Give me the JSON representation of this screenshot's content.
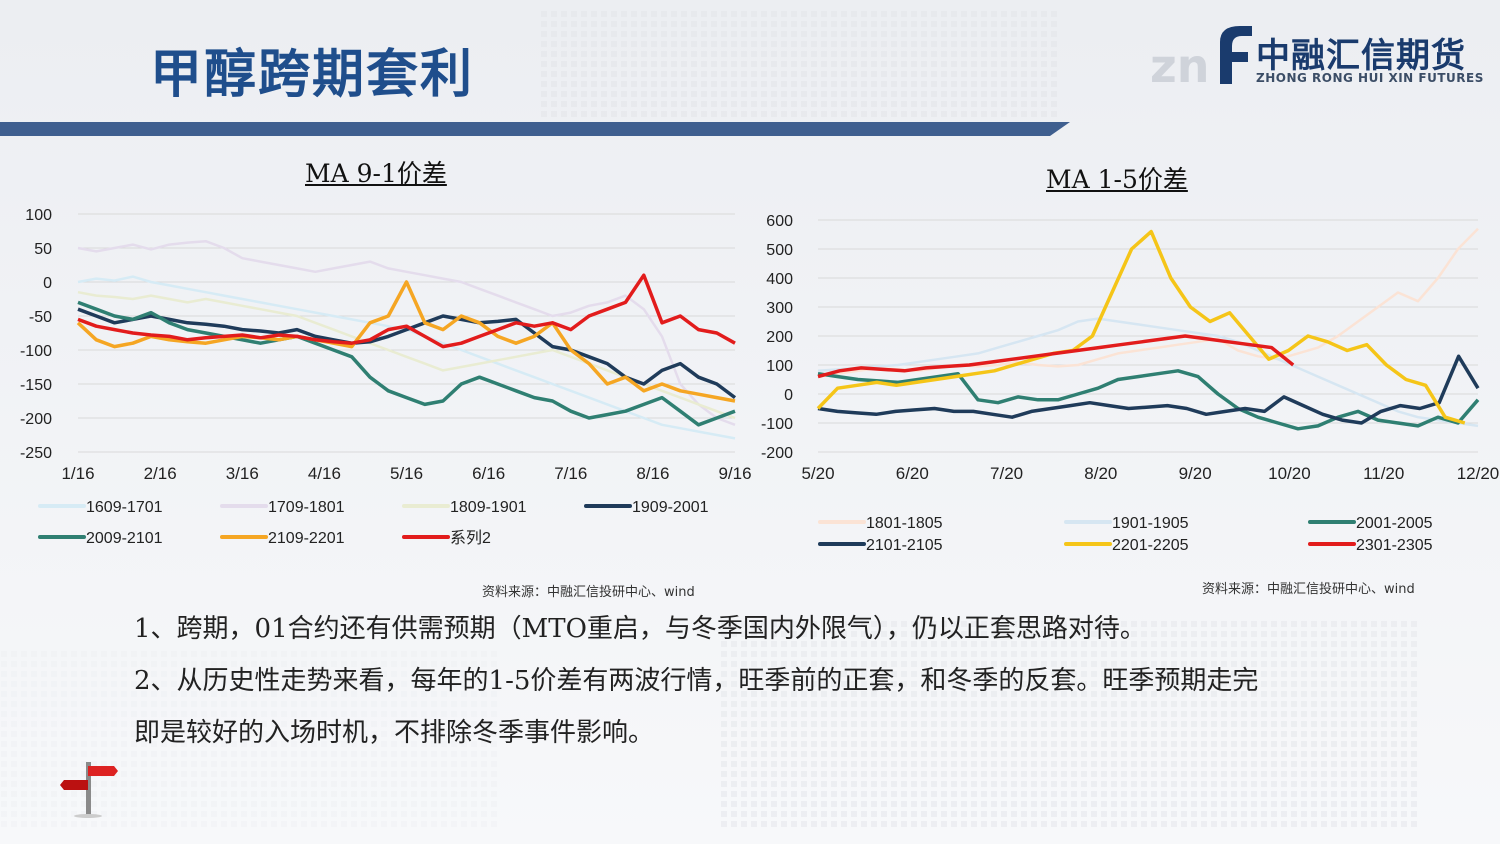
{
  "page": {
    "title": "甲醇跨期套利",
    "logo_cn": "中融汇信期货",
    "logo_en": "ZHONG RONG HUI XIN FUTURES",
    "bullets": [
      "1、跨期，01合约还有供需预期（MTO重启，与冬季国内外限气），仍以正套思路对待。",
      "2、从历史性走势来看，每年的1-5价差有两波行情，旺季前的正套，和冬季的反套。旺季预期走完",
      "即是较好的入场时机，不排除冬季事件影响。"
    ],
    "colors": {
      "title": "#1f4e8c",
      "band": "#3f5f8f",
      "logo": "#1a3b6d"
    }
  },
  "chart_data": [
    {
      "type": "line",
      "title": "MA 9-1价差",
      "source": "资料来源：中融汇信投研中心、wind",
      "ylim": [
        -250,
        100
      ],
      "yticks": [
        100,
        50,
        0,
        -50,
        -100,
        -150,
        -200,
        -250
      ],
      "xticks": [
        "1/16",
        "2/16",
        "3/16",
        "4/16",
        "5/16",
        "6/16",
        "7/16",
        "8/16",
        "9/16"
      ],
      "grid": true,
      "legend_position": "bottom",
      "series": [
        {
          "name": "1609-1701",
          "color": "#d6ebf5",
          "values": [
            0,
            5,
            2,
            8,
            0,
            -5,
            -10,
            -15,
            -20,
            -25,
            -30,
            -35,
            -40,
            -45,
            -50,
            -55,
            -60,
            -65,
            -70,
            -80,
            -90,
            -100,
            -110,
            -120,
            -130,
            -140,
            -150,
            -160,
            -170,
            -180,
            -190,
            -200,
            -210,
            -215,
            -220,
            -225,
            -230
          ]
        },
        {
          "name": "1709-1801",
          "color": "#e4dcec",
          "values": [
            50,
            45,
            50,
            55,
            48,
            55,
            58,
            60,
            50,
            35,
            30,
            25,
            20,
            15,
            20,
            25,
            30,
            20,
            15,
            10,
            5,
            0,
            -10,
            -20,
            -30,
            -40,
            -50,
            -45,
            -35,
            -30,
            -20,
            -40,
            -80,
            -150,
            -180,
            -200,
            -210
          ]
        },
        {
          "name": "1809-1901",
          "color": "#e9ecd2",
          "values": [
            -15,
            -20,
            -22,
            -25,
            -20,
            -25,
            -30,
            -25,
            -30,
            -35,
            -40,
            -45,
            -50,
            -60,
            -70,
            -80,
            -90,
            -100,
            -110,
            -120,
            -130,
            -125,
            -120,
            -115,
            -110,
            -105,
            -100,
            -110,
            -120,
            -130,
            -140,
            -150,
            -160,
            -170,
            -180,
            -190,
            -200
          ]
        },
        {
          "name": "1909-2001",
          "color": "#1f3b5a",
          "values": [
            -40,
            -50,
            -60,
            -55,
            -50,
            -55,
            -60,
            -62,
            -65,
            -70,
            -72,
            -75,
            -70,
            -80,
            -85,
            -90,
            -88,
            -80,
            -70,
            -60,
            -50,
            -55,
            -60,
            -58,
            -55,
            -75,
            -95,
            -100,
            -110,
            -120,
            -140,
            -150,
            -130,
            -120,
            -140,
            -150,
            -170
          ]
        },
        {
          "name": "2009-2101",
          "color": "#2f7f72",
          "values": [
            -30,
            -40,
            -50,
            -55,
            -45,
            -60,
            -70,
            -75,
            -80,
            -85,
            -90,
            -85,
            -80,
            -90,
            -100,
            -110,
            -140,
            -160,
            -170,
            -180,
            -175,
            -150,
            -140,
            -150,
            -160,
            -170,
            -175,
            -190,
            -200,
            -195,
            -190,
            -180,
            -170,
            -190,
            -210,
            -200,
            -190
          ]
        },
        {
          "name": "2109-2201",
          "color": "#f5a623",
          "values": [
            -60,
            -85,
            -95,
            -90,
            -80,
            -85,
            -88,
            -90,
            -85,
            -80,
            -82,
            -85,
            -80,
            -85,
            -90,
            -95,
            -60,
            -50,
            0,
            -60,
            -70,
            -50,
            -60,
            -80,
            -90,
            -80,
            -60,
            -100,
            -120,
            -150,
            -140,
            -160,
            -150,
            -160,
            -165,
            -170,
            -175
          ]
        },
        {
          "name": "系列2",
          "color": "#e21c1c",
          "values": [
            -55,
            -65,
            -70,
            -75,
            -78,
            -80,
            -85,
            -82,
            -80,
            -78,
            -82,
            -78,
            -80,
            -85,
            -88,
            -90,
            -85,
            -70,
            -65,
            -80,
            -95,
            -90,
            -80,
            -70,
            -60,
            -65,
            -60,
            -70,
            -50,
            -40,
            -30,
            10,
            -60,
            -50,
            -70,
            -75,
            -90
          ]
        }
      ]
    },
    {
      "type": "line",
      "title": "MA 1-5价差",
      "source": "资料来源：中融汇信投研中心、wind",
      "ylim": [
        -200,
        600
      ],
      "yticks": [
        600,
        500,
        400,
        300,
        200,
        100,
        0,
        -100,
        -200
      ],
      "xticks": [
        "5/20",
        "6/20",
        "7/20",
        "8/20",
        "9/20",
        "10/20",
        "11/20",
        "12/20"
      ],
      "grid": true,
      "legend_position": "bottom",
      "series": [
        {
          "name": "1801-1805",
          "color": "#fbe3d5",
          "values": [
            60,
            70,
            80,
            90,
            85,
            80,
            90,
            100,
            95,
            100,
            110,
            100,
            95,
            100,
            120,
            140,
            150,
            160,
            170,
            180,
            190,
            150,
            130,
            120,
            140,
            160,
            200,
            250,
            300,
            350,
            320,
            400,
            500,
            570
          ]
        },
        {
          "name": "1901-1905",
          "color": "#d6e6f2",
          "values": [
            80,
            85,
            90,
            95,
            100,
            110,
            120,
            130,
            140,
            160,
            180,
            200,
            220,
            250,
            260,
            250,
            240,
            230,
            220,
            210,
            200,
            180,
            150,
            120,
            90,
            60,
            30,
            0,
            -30,
            -60,
            -80,
            -90,
            -100,
            -110
          ]
        },
        {
          "name": "2001-2005",
          "color": "#2f7f72",
          "values": [
            70,
            60,
            50,
            45,
            40,
            50,
            60,
            70,
            -20,
            -30,
            -10,
            -20,
            -20,
            0,
            20,
            50,
            60,
            70,
            80,
            60,
            0,
            -50,
            -80,
            -100,
            -120,
            -110,
            -80,
            -60,
            -90,
            -100,
            -110,
            -80,
            -100,
            -20
          ]
        },
        {
          "name": "2101-2105",
          "color": "#1f3b5a",
          "values": [
            -50,
            -60,
            -65,
            -70,
            -60,
            -55,
            -50,
            -60,
            -60,
            -70,
            -80,
            -60,
            -50,
            -40,
            -30,
            -40,
            -50,
            -45,
            -40,
            -50,
            -70,
            -60,
            -50,
            -60,
            -10,
            -40,
            -70,
            -90,
            -100,
            -60,
            -40,
            -50,
            -30,
            130,
            20
          ]
        },
        {
          "name": "2201-2205",
          "color": "#f5c518",
          "values": [
            -50,
            20,
            30,
            40,
            30,
            40,
            50,
            60,
            70,
            80,
            100,
            120,
            140,
            150,
            200,
            350,
            500,
            560,
            400,
            300,
            250,
            280,
            200,
            120,
            150,
            200,
            180,
            150,
            170,
            100,
            50,
            30,
            -80,
            -100
          ]
        },
        {
          "name": "2301-2305",
          "color": "#e21c1c",
          "values": [
            60,
            80,
            90,
            85,
            80,
            90,
            95,
            100,
            110,
            120,
            130,
            140,
            150,
            160,
            170,
            180,
            190,
            200,
            190,
            180,
            170,
            160,
            100
          ]
        }
      ]
    }
  ]
}
